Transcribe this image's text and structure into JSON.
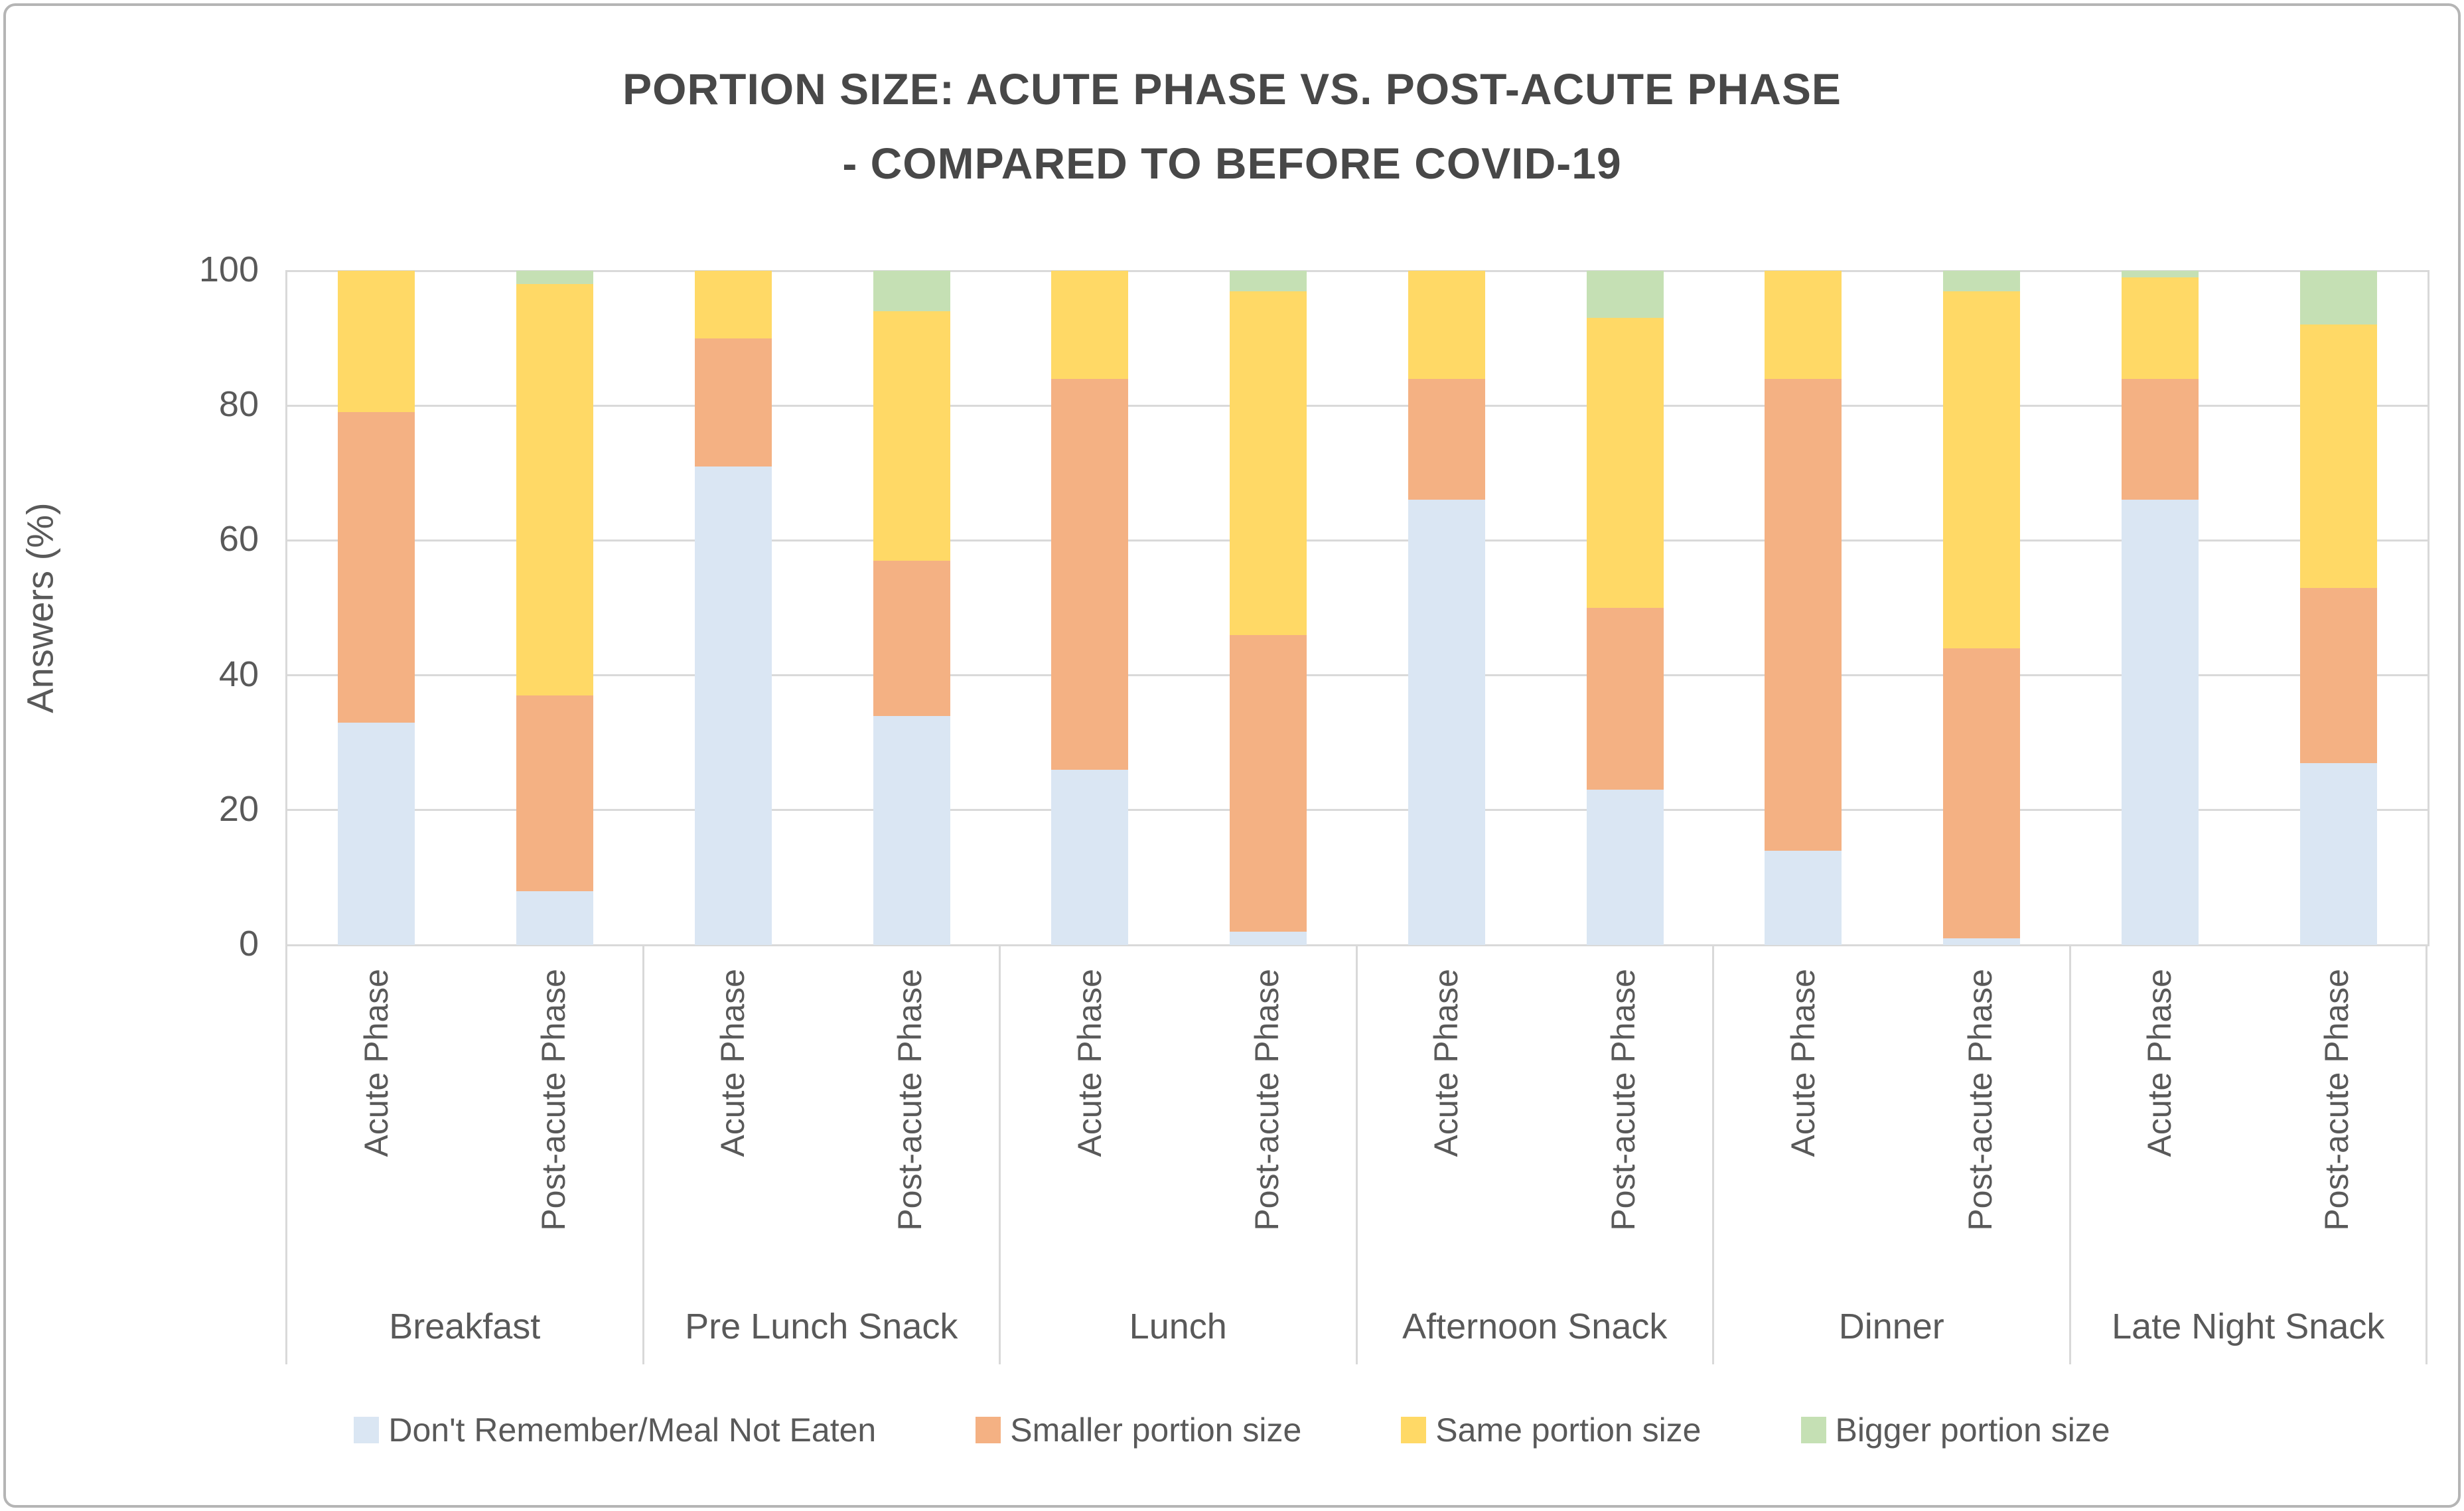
{
  "chart_data": {
    "type": "bar",
    "subtype": "stacked-column-100",
    "title_line1": "PORTION SIZE: ACUTE PHASE VS. POST-ACUTE PHASE",
    "title_line2": "- COMPARED TO BEFORE COVID-19",
    "ylabel": "Answers (%)",
    "ylim": [
      0,
      100
    ],
    "yticks": [
      0,
      20,
      40,
      60,
      80,
      100
    ],
    "grid": "horizontal",
    "legend_position": "bottom",
    "categories": [
      "Breakfast",
      "Pre Lunch Snack",
      "Lunch",
      "Afternoon Snack",
      "Dinner",
      "Late Night Snack"
    ],
    "bar_labels": [
      "Acute Phase",
      "Post-acute Phase"
    ],
    "series": [
      {
        "name": "Don't Remember/Meal Not Eaten",
        "color": "#dae6f3",
        "values": [
          [
            33,
            8
          ],
          [
            71,
            34
          ],
          [
            26,
            2
          ],
          [
            66,
            23
          ],
          [
            14,
            1
          ],
          [
            66,
            27
          ]
        ]
      },
      {
        "name": "Smaller portion size",
        "color": "#f4b183",
        "values": [
          [
            46,
            29
          ],
          [
            19,
            23
          ],
          [
            58,
            44
          ],
          [
            18,
            27
          ],
          [
            70,
            43
          ],
          [
            18,
            26
          ]
        ]
      },
      {
        "name": "Same portion size",
        "color": "#ffd966",
        "values": [
          [
            21,
            61
          ],
          [
            10,
            37
          ],
          [
            16,
            51
          ],
          [
            16,
            43
          ],
          [
            16,
            53
          ],
          [
            15,
            39
          ]
        ]
      },
      {
        "name": "Bigger portion size",
        "color": "#c5e0b4",
        "values": [
          [
            0,
            2
          ],
          [
            0,
            6
          ],
          [
            0,
            3
          ],
          [
            0,
            7
          ],
          [
            0,
            3
          ],
          [
            1,
            8
          ]
        ]
      }
    ]
  }
}
